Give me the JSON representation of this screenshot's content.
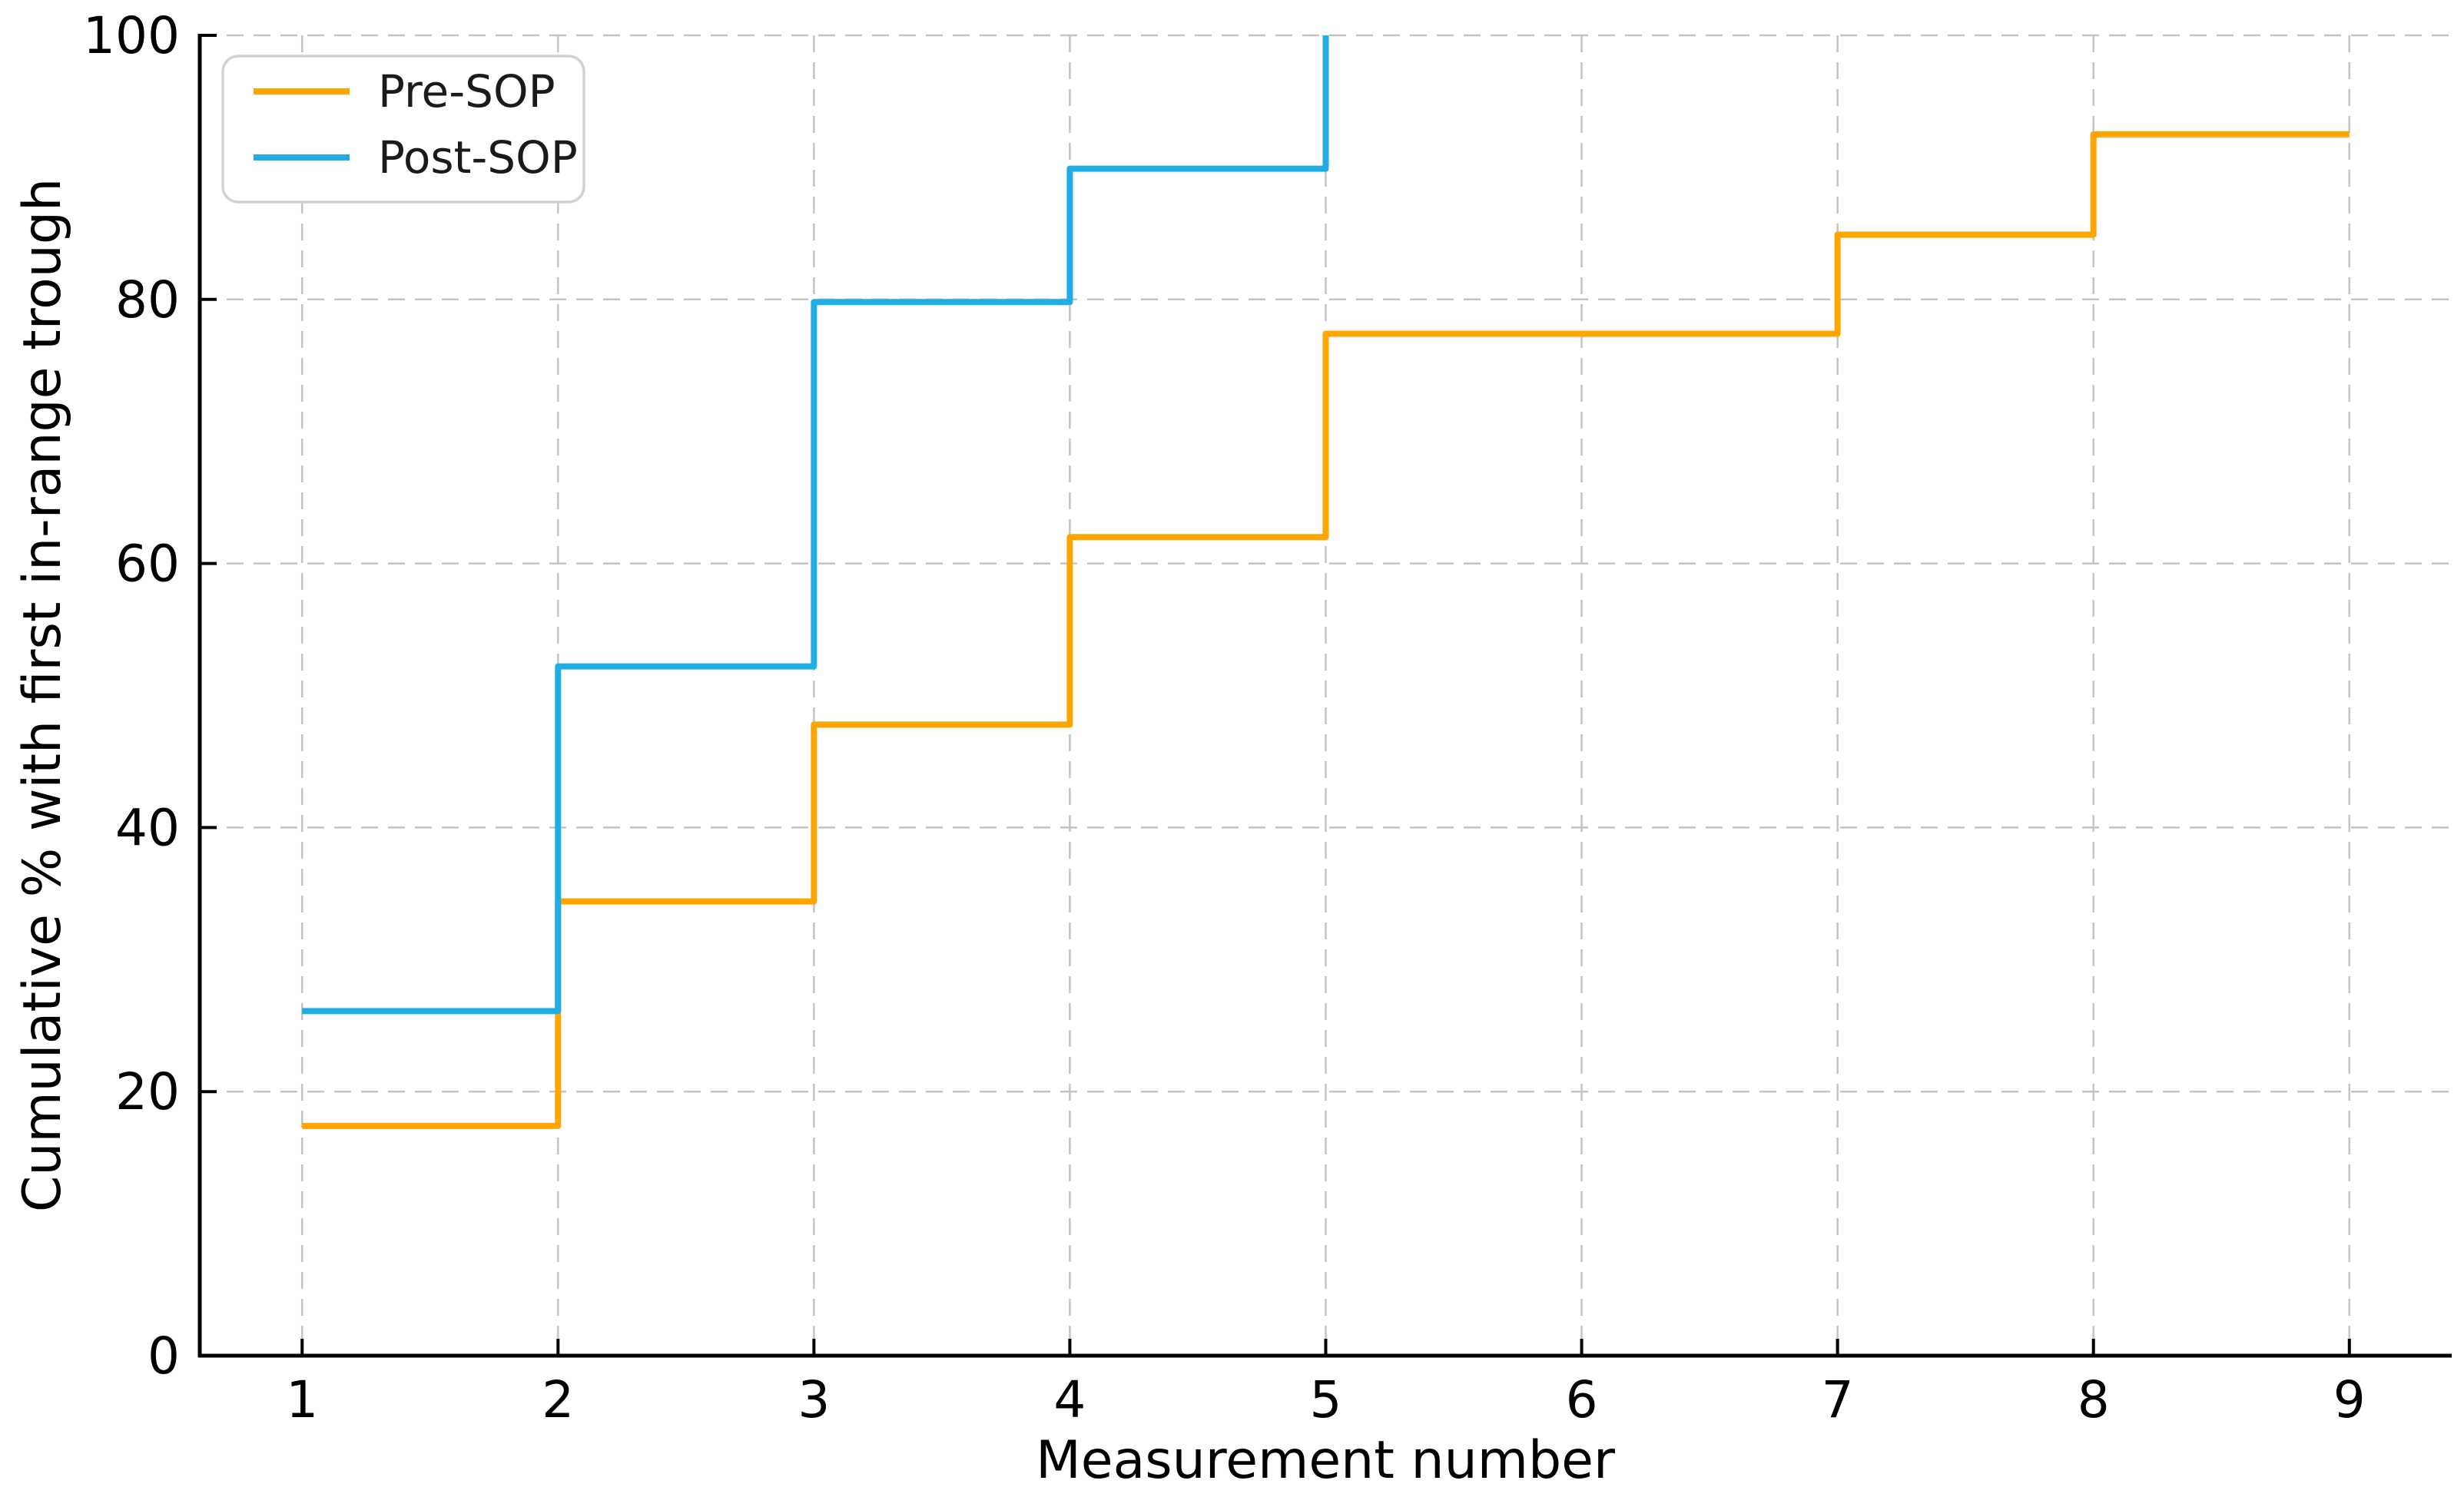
{
  "chart_data": {
    "type": "line",
    "drawstyle": "steps-post",
    "title": "",
    "xlabel": "Measurement number",
    "ylabel": "Cumulative % with first in-range trough",
    "x_ticks": [
      1,
      2,
      3,
      4,
      5,
      6,
      7,
      8,
      9
    ],
    "y_ticks": [
      0,
      20,
      40,
      60,
      80,
      100
    ],
    "xlim": [
      0.6,
      9.4
    ],
    "ylim": [
      0,
      100
    ],
    "grid": "dashed gray, both axes",
    "grid_color": "#c4c4c4",
    "axis_color": "#000000",
    "legend_position": "upper left",
    "series": [
      {
        "name": "Pre-SOP",
        "color": "#ffa500",
        "x": [
          1,
          2,
          3,
          4,
          5,
          6,
          7,
          8,
          9
        ],
        "y": [
          17.4,
          34.4,
          47.8,
          62.0,
          77.4,
          77.4,
          84.9,
          92.5,
          92.5
        ]
      },
      {
        "name": "Post-SOP",
        "color": "#1fade4",
        "x": [
          1,
          2,
          3,
          4,
          5
        ],
        "y": [
          26.1,
          52.2,
          79.8,
          89.9,
          100.0
        ]
      }
    ]
  }
}
